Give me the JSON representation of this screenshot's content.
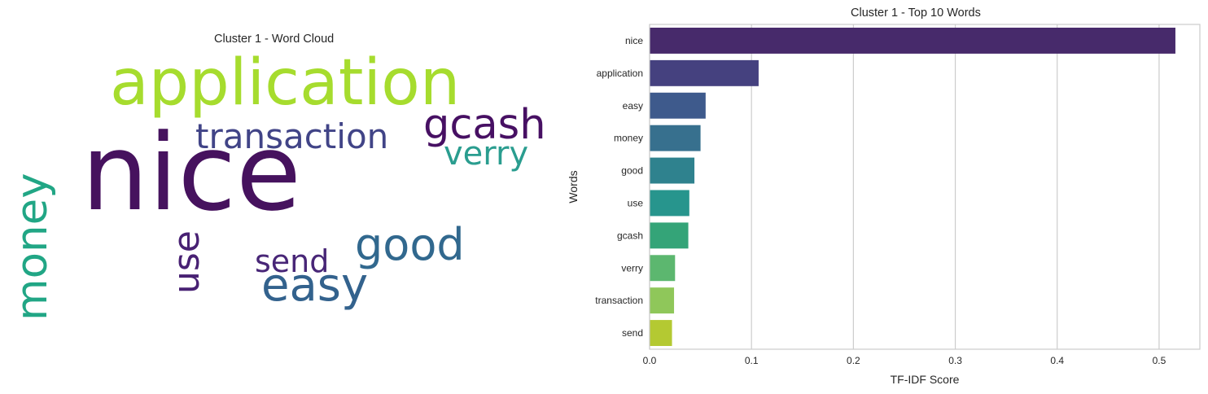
{
  "chart_data": [
    {
      "type": "wordcloud",
      "title": "Cluster 1 - Word Cloud",
      "words": [
        {
          "text": "nice",
          "color": "#46125e"
        },
        {
          "text": "application",
          "color": "#a6dc2e"
        },
        {
          "text": "transaction",
          "color": "#414487"
        },
        {
          "text": "gcash",
          "color": "#471063"
        },
        {
          "text": "verry",
          "color": "#2a9d8f"
        },
        {
          "text": "money",
          "color": "#21a685"
        },
        {
          "text": "use",
          "color": "#482173"
        },
        {
          "text": "good",
          "color": "#31688e"
        },
        {
          "text": "send",
          "color": "#482677"
        },
        {
          "text": "easy",
          "color": "#33628d"
        }
      ]
    },
    {
      "type": "bar",
      "orientation": "horizontal",
      "title": "Cluster 1 - Top 10 Words",
      "xlabel": "TF-IDF Score",
      "ylabel": "Words",
      "xlim": [
        0,
        0.54
      ],
      "xticks": [
        "0.0",
        "0.1",
        "0.2",
        "0.3",
        "0.4",
        "0.5"
      ],
      "grid": "vertical",
      "categories": [
        "nice",
        "application",
        "easy",
        "money",
        "good",
        "use",
        "gcash",
        "verry",
        "transaction",
        "send"
      ],
      "values": [
        0.516,
        0.107,
        0.055,
        0.05,
        0.044,
        0.039,
        0.038,
        0.025,
        0.024,
        0.022
      ],
      "colors": [
        "#472a6b",
        "#45417f",
        "#3e5a8c",
        "#37708e",
        "#2f828e",
        "#27958d",
        "#34a478",
        "#5cb76f",
        "#8fc75a",
        "#b4c932"
      ]
    }
  ]
}
